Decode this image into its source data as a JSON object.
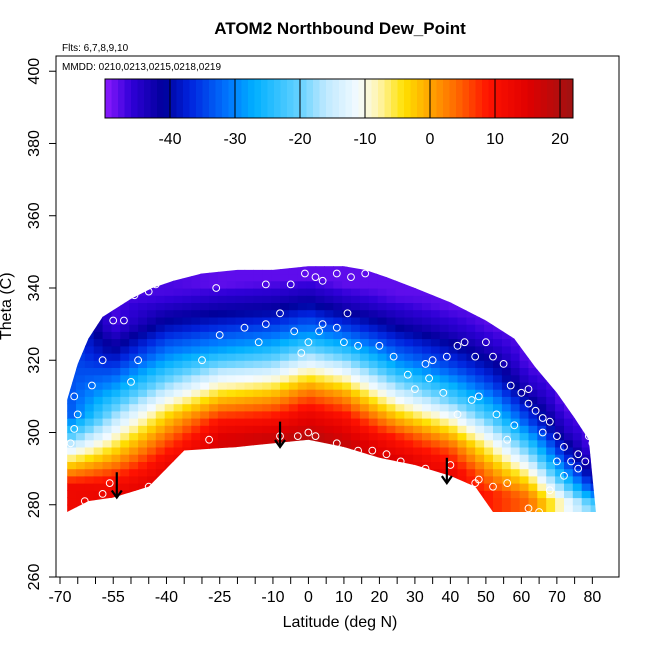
{
  "chart_data": {
    "type": "heatmap",
    "title": "ATOM2 Northbound Dew_Point",
    "annotations": [
      "Flts: 6,7,8,9,10",
      "MMDD: 0210,0213,0215,0218,0219"
    ],
    "xlabel": "Latitude (deg N)",
    "ylabel": "Theta (C)",
    "xlim": [
      -70,
      83
    ],
    "ylim": [
      260,
      402
    ],
    "x_ticks": [
      -70,
      -55,
      -40,
      -25,
      -10,
      0,
      10,
      20,
      30,
      40,
      50,
      60,
      70,
      80
    ],
    "y_ticks": [
      260,
      280,
      300,
      320,
      340,
      360,
      380,
      400
    ],
    "colorbar": {
      "min": -50,
      "max": 22,
      "ticks": [
        -40,
        -30,
        -20,
        -10,
        0,
        10,
        20
      ],
      "stops": [
        {
          "v": -50,
          "color": "#8c1aff"
        },
        {
          "v": -46,
          "color": "#3000d8"
        },
        {
          "v": -41,
          "color": "#00009a"
        },
        {
          "v": -37,
          "color": "#0022dd"
        },
        {
          "v": -31,
          "color": "#0077ff"
        },
        {
          "v": -27,
          "color": "#00b0ff"
        },
        {
          "v": -20,
          "color": "#66d2ff"
        },
        {
          "v": -16,
          "color": "#bfe9ff"
        },
        {
          "v": -11,
          "color": "#f4fbff"
        },
        {
          "v": -8,
          "color": "#fff5b0"
        },
        {
          "v": -4,
          "color": "#ffe000"
        },
        {
          "v": 0,
          "color": "#ffa500"
        },
        {
          "v": 4,
          "color": "#ff6a00"
        },
        {
          "v": 9,
          "color": "#ff1200"
        },
        {
          "v": 15,
          "color": "#e00000"
        },
        {
          "v": 22,
          "color": "#9e1212"
        }
      ]
    },
    "data_boundary": {
      "upper": [
        [
          -68,
          309
        ],
        [
          -65,
          319
        ],
        [
          -62,
          326
        ],
        [
          -58,
          332
        ],
        [
          -50,
          337
        ],
        [
          -44,
          340
        ],
        [
          -38,
          342
        ],
        [
          -30,
          344
        ],
        [
          -20,
          345
        ],
        [
          -10,
          345
        ],
        [
          0,
          346
        ],
        [
          10,
          346
        ],
        [
          16,
          345
        ],
        [
          22,
          343
        ],
        [
          30,
          340
        ],
        [
          40,
          336
        ],
        [
          50,
          331
        ],
        [
          58,
          326
        ],
        [
          64,
          318
        ],
        [
          70,
          311
        ],
        [
          75,
          304
        ],
        [
          79,
          298
        ],
        [
          81,
          278
        ]
      ],
      "lower": [
        [
          -68,
          278
        ],
        [
          -62,
          281
        ],
        [
          -55,
          282
        ],
        [
          -45,
          285
        ],
        [
          -35,
          295
        ],
        [
          -20,
          296
        ],
        [
          -10,
          297
        ],
        [
          0,
          298
        ],
        [
          10,
          296
        ],
        [
          20,
          293
        ],
        [
          30,
          291
        ],
        [
          40,
          288
        ],
        [
          47,
          285
        ],
        [
          52,
          278
        ],
        [
          81,
          278
        ]
      ]
    },
    "field": {
      "columns": [
        {
          "lat": -68,
          "levels": [
            [
              285,
              12
            ],
            [
              289,
              2
            ],
            [
              294,
              -10
            ],
            [
              299,
              -22
            ],
            [
              305,
              -34
            ]
          ]
        },
        {
          "lat": -55,
          "levels": [
            [
              284,
              13
            ],
            [
              288,
              8
            ],
            [
              294,
              -2
            ],
            [
              302,
              -14
            ],
            [
              312,
              -28
            ],
            [
              322,
              -40
            ],
            [
              330,
              -47
            ]
          ]
        },
        {
          "lat": -40,
          "levels": [
            [
              287,
              15
            ],
            [
              292,
              12
            ],
            [
              298,
              5
            ],
            [
              305,
              -4
            ],
            [
              312,
              -16
            ],
            [
              320,
              -28
            ],
            [
              330,
              -40
            ],
            [
              338,
              -47
            ]
          ]
        },
        {
          "lat": -25,
          "levels": [
            [
              298,
              16
            ],
            [
              303,
              10
            ],
            [
              309,
              -1
            ],
            [
              316,
              -14
            ],
            [
              323,
              -28
            ],
            [
              332,
              -40
            ],
            [
              341,
              -48
            ]
          ]
        },
        {
          "lat": -10,
          "levels": [
            [
              299,
              17
            ],
            [
              304,
              10
            ],
            [
              311,
              -2
            ],
            [
              318,
              -16
            ],
            [
              326,
              -30
            ],
            [
              334,
              -41
            ],
            [
              342,
              -48
            ]
          ]
        },
        {
          "lat": 0,
          "levels": [
            [
              299,
              19
            ],
            [
              305,
              13
            ],
            [
              312,
              2
            ],
            [
              320,
              -14
            ],
            [
              328,
              -30
            ],
            [
              336,
              -41
            ],
            [
              343,
              -48
            ]
          ]
        },
        {
          "lat": 10,
          "levels": [
            [
              297,
              18
            ],
            [
              304,
              11
            ],
            [
              311,
              0
            ],
            [
              318,
              -14
            ],
            [
              326,
              -30
            ],
            [
              334,
              -42
            ],
            [
              341,
              -48
            ]
          ]
        },
        {
          "lat": 25,
          "levels": [
            [
              293,
              15
            ],
            [
              299,
              8
            ],
            [
              305,
              -3
            ],
            [
              312,
              -16
            ],
            [
              320,
              -30
            ],
            [
              330,
              -42
            ],
            [
              338,
              -48
            ]
          ]
        },
        {
          "lat": 40,
          "levels": [
            [
              289,
              13
            ],
            [
              296,
              5
            ],
            [
              302,
              -6
            ],
            [
              309,
              -20
            ],
            [
              318,
              -34
            ],
            [
              328,
              -44
            ],
            [
              335,
              -48
            ]
          ]
        },
        {
          "lat": 52,
          "levels": [
            [
              283,
              8
            ],
            [
              290,
              0
            ],
            [
              297,
              -10
            ],
            [
              305,
              -24
            ],
            [
              314,
              -36
            ],
            [
              324,
              -45
            ],
            [
              330,
              -48
            ]
          ]
        },
        {
          "lat": 62,
          "levels": [
            [
              282,
              4
            ],
            [
              288,
              -6
            ],
            [
              295,
              -20
            ],
            [
              303,
              -34
            ],
            [
              312,
              -44
            ],
            [
              320,
              -48
            ]
          ]
        },
        {
          "lat": 72,
          "levels": [
            [
              281,
              -10
            ],
            [
              286,
              -22
            ],
            [
              292,
              -34
            ],
            [
              300,
              -44
            ],
            [
              308,
              -48
            ]
          ]
        },
        {
          "lat": 80,
          "levels": [
            [
              280,
              -20
            ],
            [
              284,
              -34
            ],
            [
              290,
              -44
            ],
            [
              296,
              -48
            ]
          ]
        }
      ]
    },
    "sample_points": [
      [
        -67,
        297
      ],
      [
        -66,
        301
      ],
      [
        -65,
        305
      ],
      [
        -66,
        310
      ],
      [
        -61,
        313
      ],
      [
        -58,
        320
      ],
      [
        -55,
        331
      ],
      [
        -52,
        331
      ],
      [
        -49,
        338
      ],
      [
        -45,
        339
      ],
      [
        -43,
        341
      ],
      [
        -48,
        320
      ],
      [
        -50,
        314
      ],
      [
        -56,
        286
      ],
      [
        -58,
        283
      ],
      [
        -63,
        281
      ],
      [
        -45,
        285
      ],
      [
        -28,
        298
      ],
      [
        -30,
        320
      ],
      [
        -25,
        327
      ],
      [
        -18,
        329
      ],
      [
        -12,
        330
      ],
      [
        -8,
        333
      ],
      [
        -5,
        341
      ],
      [
        -14,
        325
      ],
      [
        -4,
        328
      ],
      [
        0,
        325
      ],
      [
        3,
        328
      ],
      [
        8,
        329
      ],
      [
        11,
        333
      ],
      [
        10,
        325
      ],
      [
        14,
        324
      ],
      [
        -2,
        322
      ],
      [
        4,
        330
      ],
      [
        2,
        299
      ],
      [
        0,
        300
      ],
      [
        -3,
        299
      ],
      [
        -8,
        299
      ],
      [
        8,
        297
      ],
      [
        14,
        295
      ],
      [
        18,
        295
      ],
      [
        22,
        294
      ],
      [
        26,
        292
      ],
      [
        33,
        290
      ],
      [
        40,
        291
      ],
      [
        47,
        286
      ],
      [
        48,
        287
      ],
      [
        52,
        285
      ],
      [
        56,
        286
      ],
      [
        -1,
        344
      ],
      [
        2,
        343
      ],
      [
        4,
        342
      ],
      [
        8,
        344
      ],
      [
        12,
        343
      ],
      [
        16,
        344
      ],
      [
        -12,
        341
      ],
      [
        -26,
        340
      ],
      [
        20,
        324
      ],
      [
        24,
        321
      ],
      [
        28,
        316
      ],
      [
        30,
        312
      ],
      [
        33,
        319
      ],
      [
        35,
        320
      ],
      [
        39,
        321
      ],
      [
        42,
        324
      ],
      [
        44,
        325
      ],
      [
        47,
        321
      ],
      [
        50,
        325
      ],
      [
        52,
        321
      ],
      [
        55,
        319
      ],
      [
        57,
        313
      ],
      [
        60,
        311
      ],
      [
        62,
        308
      ],
      [
        64,
        306
      ],
      [
        66,
        304
      ],
      [
        68,
        303
      ],
      [
        70,
        299
      ],
      [
        72,
        296
      ],
      [
        74,
        292
      ],
      [
        76,
        290
      ],
      [
        78,
        292
      ],
      [
        80,
        297
      ],
      [
        79,
        299
      ],
      [
        53,
        305
      ],
      [
        48,
        310
      ],
      [
        46,
        309
      ],
      [
        42,
        305
      ],
      [
        38,
        311
      ],
      [
        34,
        315
      ],
      [
        62,
        312
      ],
      [
        66,
        300
      ],
      [
        70,
        292
      ],
      [
        72,
        288
      ],
      [
        76,
        294
      ],
      [
        62,
        279
      ],
      [
        65,
        278
      ],
      [
        68,
        284
      ],
      [
        56,
        298
      ],
      [
        58,
        302
      ]
    ],
    "arrows": [
      {
        "lat": -54,
        "theta_from": 289,
        "theta_to": 282
      },
      {
        "lat": -8,
        "theta_from": 303,
        "theta_to": 296
      },
      {
        "lat": 39,
        "theta_from": 293,
        "theta_to": 286
      }
    ]
  }
}
